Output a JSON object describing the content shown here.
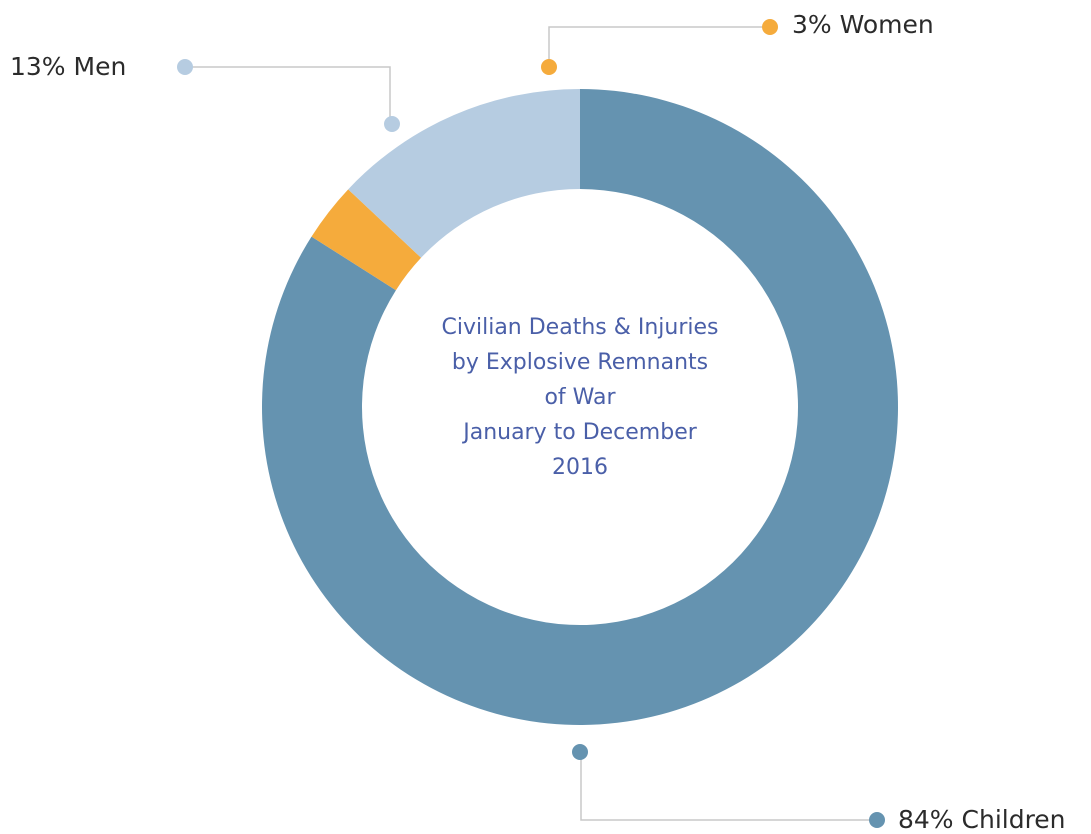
{
  "chart_data": {
    "type": "pie",
    "variant": "donut",
    "title_lines": [
      "Civilian Deaths & Injuries",
      "by Explosive Remnants",
      "of War",
      "January to December",
      "2016"
    ],
    "slices": [
      {
        "name": "Children",
        "value": 84,
        "label": "84% Children",
        "color": "#6593b0"
      },
      {
        "name": "Women",
        "value": 3,
        "label": "3% Women",
        "color": "#f5ab3c"
      },
      {
        "name": "Men",
        "value": 13,
        "label": "13% Men",
        "color": "#b6cce1"
      }
    ],
    "units": "%",
    "legend": "callout-labels"
  },
  "colors": {
    "title_text": "#4a5fa8",
    "leader_line": "#c8c8c8"
  }
}
